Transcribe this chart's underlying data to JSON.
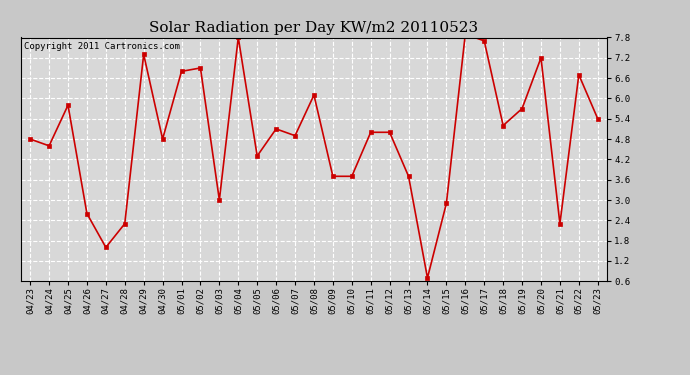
{
  "title": "Solar Radiation per Day KW/m2 20110523",
  "copyright_text": "Copyright 2011 Cartronics.com",
  "dates": [
    "04/23",
    "04/24",
    "04/25",
    "04/26",
    "04/27",
    "04/28",
    "04/29",
    "04/30",
    "05/01",
    "05/02",
    "05/03",
    "05/04",
    "05/05",
    "05/06",
    "05/07",
    "05/08",
    "05/09",
    "05/10",
    "05/11",
    "05/12",
    "05/13",
    "05/14",
    "05/15",
    "05/16",
    "05/17",
    "05/18",
    "05/19",
    "05/20",
    "05/21",
    "05/22",
    "05/23"
  ],
  "values": [
    4.8,
    4.6,
    5.8,
    2.6,
    1.6,
    2.3,
    7.3,
    4.8,
    6.8,
    6.9,
    3.0,
    7.8,
    4.3,
    5.1,
    4.9,
    6.1,
    3.7,
    3.7,
    5.0,
    5.0,
    3.7,
    0.7,
    2.9,
    7.9,
    7.7,
    5.2,
    5.7,
    7.2,
    2.3,
    6.7,
    5.4
  ],
  "line_color": "#cc0000",
  "marker_color": "#cc0000",
  "plot_bg_color": "#d8d8d8",
  "fig_bg_color": "#c8c8c8",
  "grid_color": "#ffffff",
  "ylim_min": 0.6,
  "ylim_max": 7.8,
  "yticks": [
    0.6,
    1.2,
    1.8,
    2.4,
    3.0,
    3.6,
    4.2,
    4.8,
    5.4,
    6.0,
    6.6,
    7.2,
    7.8
  ],
  "title_fontsize": 11,
  "copyright_fontsize": 6.5,
  "tick_fontsize": 6.5
}
